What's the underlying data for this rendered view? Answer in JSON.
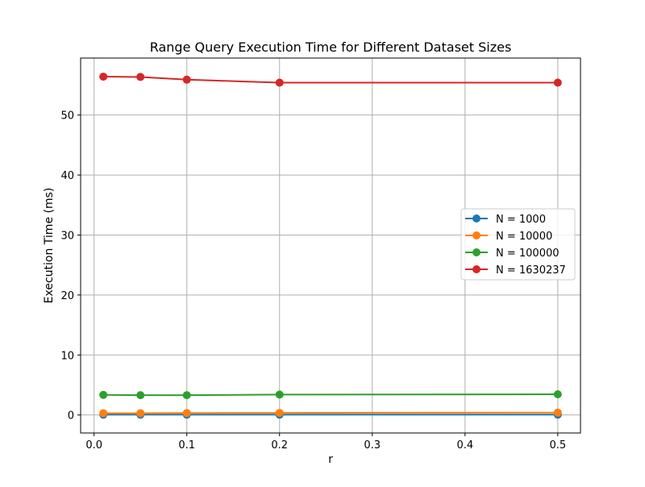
{
  "chart_data": {
    "type": "line",
    "title": "Range Query Execution Time for Different Dataset Sizes",
    "xlabel": "r",
    "ylabel": "Execution Time (ms)",
    "xlim": [
      -0.0145,
      0.5245
    ],
    "ylim": [
      -3.0,
      59.5
    ],
    "xticks": [
      0.0,
      0.1,
      0.2,
      0.3,
      0.4,
      0.5
    ],
    "xtick_labels": [
      "0.0",
      "0.1",
      "0.2",
      "0.3",
      "0.4",
      "0.5"
    ],
    "yticks": [
      0,
      10,
      20,
      30,
      40,
      50
    ],
    "ytick_labels": [
      "0",
      "10",
      "20",
      "30",
      "40",
      "50"
    ],
    "grid": true,
    "legend_position": "center-right",
    "x": [
      0.01,
      0.05,
      0.1,
      0.2,
      0.5
    ],
    "series": [
      {
        "name": "N = 1000",
        "color": "#1f77b4",
        "marker": "circle",
        "values": [
          0.05,
          0.05,
          0.05,
          0.05,
          0.05
        ]
      },
      {
        "name": "N = 10000",
        "color": "#ff7f0e",
        "marker": "circle",
        "values": [
          0.3,
          0.3,
          0.32,
          0.35,
          0.4
        ]
      },
      {
        "name": "N = 100000",
        "color": "#2ca02c",
        "marker": "circle",
        "values": [
          3.35,
          3.3,
          3.3,
          3.4,
          3.45
        ]
      },
      {
        "name": "N = 1630237",
        "color": "#d62728",
        "marker": "circle",
        "values": [
          56.4,
          56.35,
          55.9,
          55.4,
          55.4
        ]
      }
    ]
  }
}
